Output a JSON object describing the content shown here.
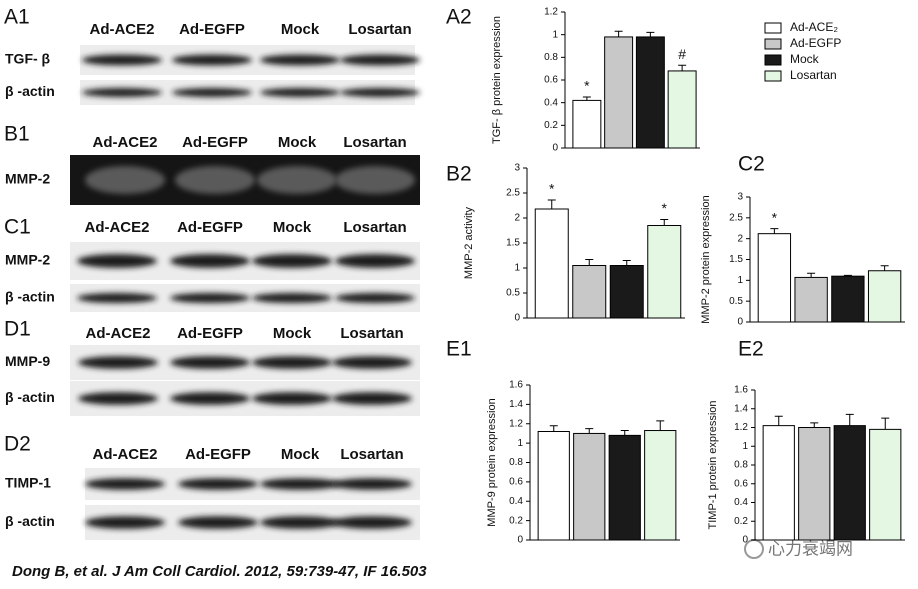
{
  "blots": [
    {
      "label": "A1",
      "lanes": [
        "Ad-ACE2",
        "Ad-EGFP",
        "Mock",
        "Losartan"
      ],
      "rows": [
        "TGF- β",
        "β -actin"
      ]
    },
    {
      "label": "B1",
      "lanes": [
        "Ad-ACE2",
        "Ad-EGFP",
        "Mock",
        "Losartan"
      ],
      "rows": [
        "MMP-2"
      ]
    },
    {
      "label": "C1",
      "lanes": [
        "Ad-ACE2",
        "Ad-EGFP",
        "Mock",
        "Losartan"
      ],
      "rows": [
        "MMP-2",
        "β -actin"
      ]
    },
    {
      "label": "D1",
      "lanes": [
        "Ad-ACE2",
        "Ad-EGFP",
        "Mock",
        "Losartan"
      ],
      "rows": [
        "MMP-9",
        "β -actin"
      ]
    },
    {
      "label": "D2",
      "lanes": [
        "Ad-ACE2",
        "Ad-EGFP",
        "Mock",
        "Losartan"
      ],
      "rows": [
        "TIMP-1",
        "β -actin"
      ]
    }
  ],
  "legend": [
    {
      "name": "Ad-ACE₂",
      "color": "#ffffff"
    },
    {
      "name": "Ad-EGFP",
      "color": "#c8c8c8"
    },
    {
      "name": "Mock",
      "color": "#1a1a1a"
    },
    {
      "name": "Losartan",
      "color": "#e3f7e3"
    }
  ],
  "chart_data": [
    {
      "type": "bar",
      "panel": "A2",
      "y_label": "TGF- β protein expression",
      "values": [
        0.42,
        0.98,
        0.98,
        0.68
      ],
      "errors": [
        0.03,
        0.05,
        0.04,
        0.05
      ],
      "bar_labels": [
        "*",
        null,
        null,
        "#"
      ],
      "ylim": [
        0,
        1.2
      ],
      "yticks": [
        0,
        0.2,
        0.4,
        0.6,
        0.8,
        1,
        1.2
      ]
    },
    {
      "type": "bar",
      "panel": "B2",
      "y_label": "MMP-2 activity",
      "values": [
        2.18,
        1.05,
        1.05,
        1.85
      ],
      "errors": [
        0.18,
        0.12,
        0.1,
        0.12
      ],
      "bar_labels": [
        "*",
        null,
        null,
        "*"
      ],
      "ylim": [
        0,
        3
      ],
      "yticks": [
        0,
        0.5,
        1,
        1.5,
        2,
        2.5,
        3
      ]
    },
    {
      "type": "bar",
      "panel": "C2",
      "y_label": "MMP-2 protein expression",
      "values": [
        2.12,
        1.07,
        1.1,
        1.23
      ],
      "errors": [
        0.12,
        0.1,
        0.02,
        0.12
      ],
      "bar_labels": [
        "*",
        null,
        null,
        null
      ],
      "ylim": [
        0,
        3
      ],
      "yticks": [
        0,
        0.5,
        1,
        1.5,
        2,
        2.5,
        3
      ]
    },
    {
      "type": "bar",
      "panel": "E1",
      "y_label": "MMP-9 protein expression",
      "values": [
        1.12,
        1.1,
        1.08,
        1.13
      ],
      "errors": [
        0.06,
        0.05,
        0.05,
        0.1
      ],
      "bar_labels": [
        null,
        null,
        null,
        null
      ],
      "ylim": [
        0,
        1.6
      ],
      "yticks": [
        0,
        0.2,
        0.4,
        0.6,
        0.8,
        1,
        1.2,
        1.4,
        1.6
      ]
    },
    {
      "type": "bar",
      "panel": "E2",
      "y_label": "TIMP-1 protein expression",
      "values": [
        1.22,
        1.2,
        1.22,
        1.18
      ],
      "errors": [
        0.1,
        0.05,
        0.12,
        0.12
      ],
      "bar_labels": [
        null,
        null,
        null,
        null
      ],
      "ylim": [
        0,
        1.6
      ],
      "yticks": [
        0,
        0.2,
        0.4,
        0.6,
        0.8,
        1,
        1.2,
        1.4,
        1.6
      ]
    }
  ],
  "citation": "Dong B, et al. J Am Coll Cardiol. 2012, 59:739-47, IF 16.503",
  "watermark": "心力衰竭网"
}
